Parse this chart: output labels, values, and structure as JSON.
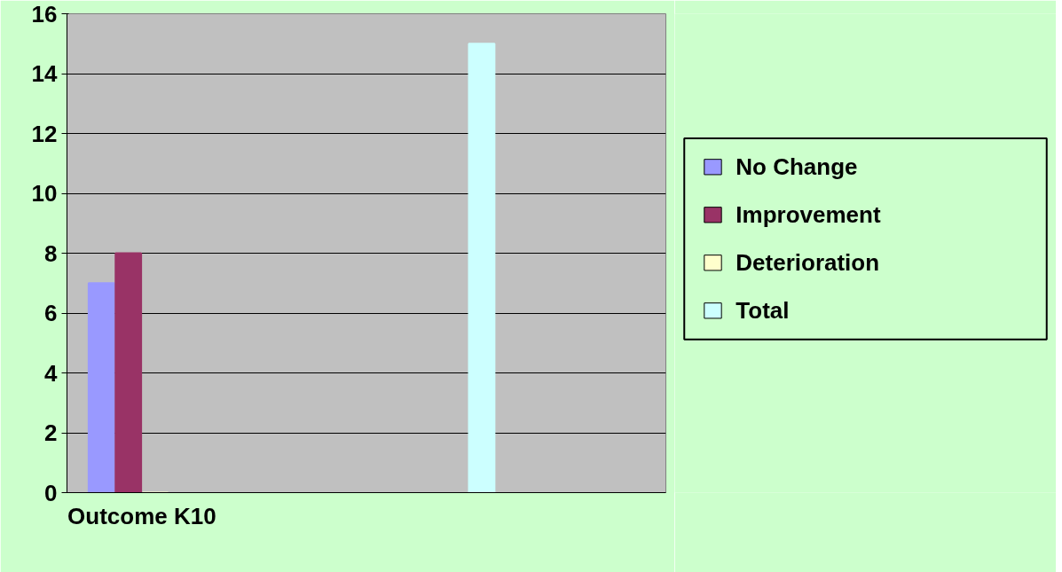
{
  "chart_data": {
    "type": "bar",
    "categories": [
      "Outcome K10",
      null,
      null,
      null
    ],
    "series": [
      {
        "name": "No Change",
        "color": "#9999ff",
        "values": [
          7,
          null,
          null,
          null
        ]
      },
      {
        "name": "Improvement",
        "color": "#993366",
        "values": [
          8,
          null,
          null,
          null
        ]
      },
      {
        "name": "Deterioration",
        "color": "#ffffcc",
        "values": [
          0,
          null,
          null,
          null
        ]
      },
      {
        "name": "Total",
        "color": "#ccffff",
        "values": [
          null,
          null,
          15,
          null
        ]
      }
    ],
    "ylim": [
      0,
      16
    ],
    "yticks": [
      0,
      2,
      4,
      6,
      8,
      10,
      12,
      14,
      16
    ],
    "grid": "y",
    "legend": "right"
  }
}
